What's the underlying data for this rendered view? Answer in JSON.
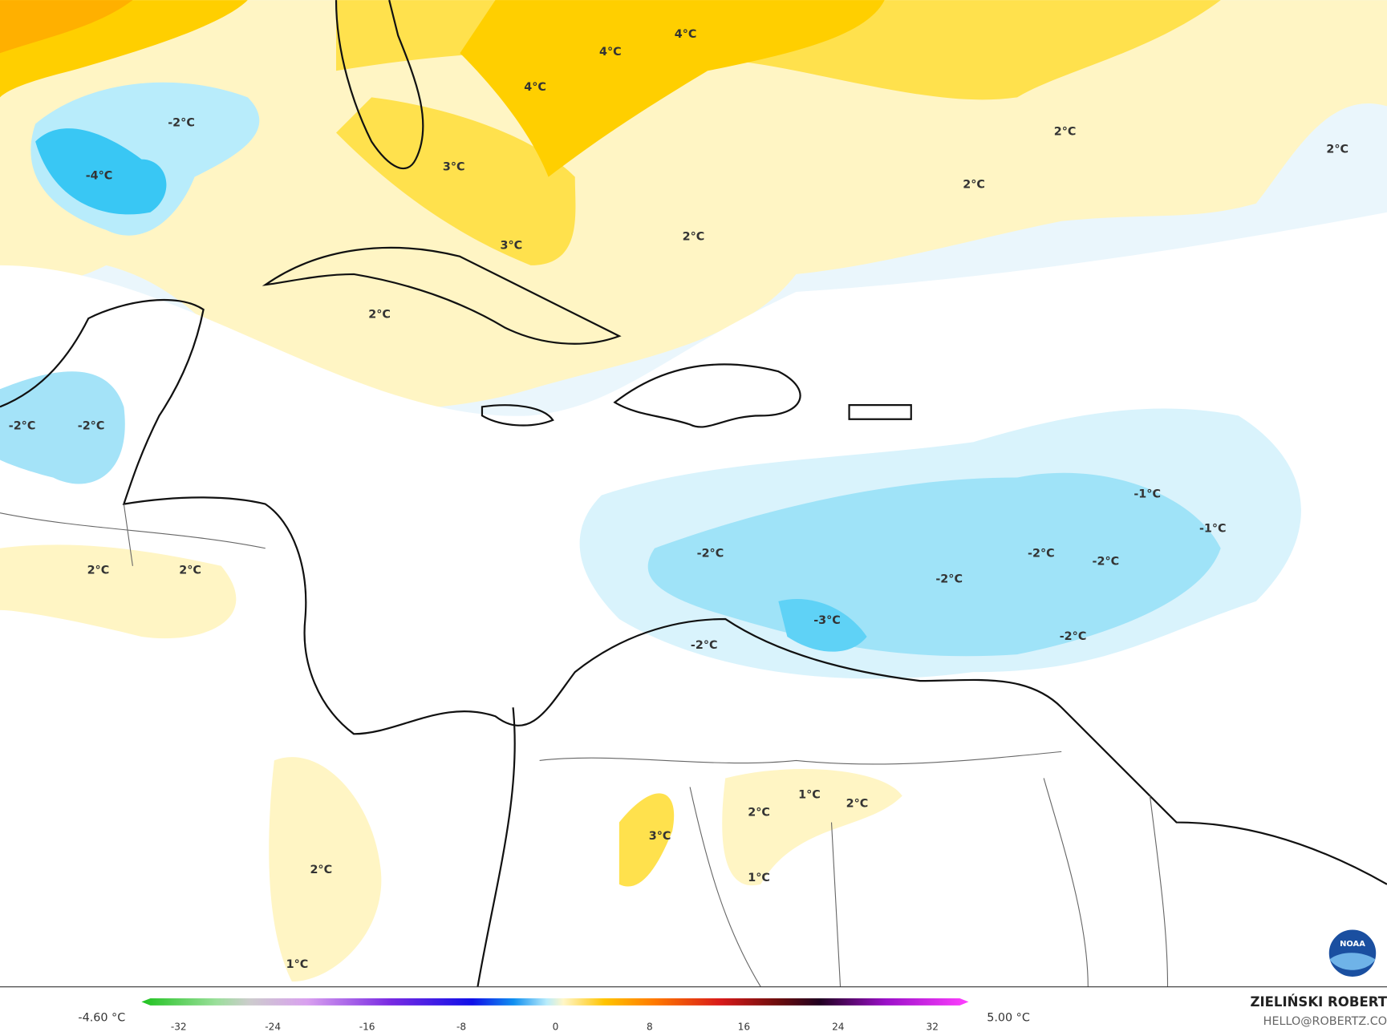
{
  "map": {
    "contour_labels": [
      "4°C",
      "4°C",
      "4°C",
      "-2°C",
      "-4°C",
      "3°C",
      "3°C",
      "2°C",
      "2°C",
      "2°C",
      "2°C",
      "2°C",
      "-2°C",
      "-2°C",
      "2°C",
      "2°C",
      "-1°C",
      "-1°C",
      "-2°C",
      "-2°C",
      "-2°C",
      "-2°C",
      "-3°C",
      "-2°C",
      "-2°C",
      "1°C",
      "2°C",
      "2°C",
      "3°C",
      "1°C",
      "2°C",
      "1°C"
    ],
    "colorbar": {
      "min_label": "-4.60 °C",
      "max_label": "5.00 °C",
      "ticks": [
        -32,
        -24,
        -16,
        -8,
        0,
        8,
        16,
        24,
        32
      ]
    },
    "credit": {
      "author": "ZIELIŃSKI ROBERT",
      "contact": "HELLO@ROBERTZ.CO"
    },
    "logo": "NOAA"
  }
}
